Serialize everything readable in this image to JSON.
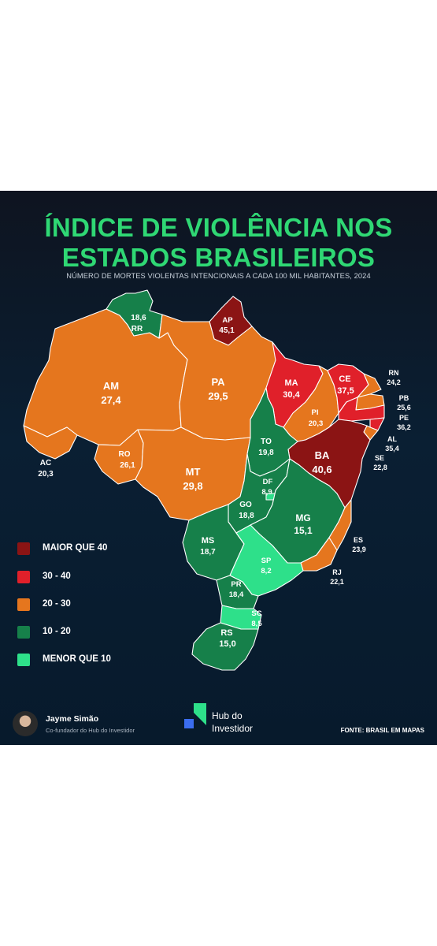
{
  "title_line1": "ÍNDICE DE VIOLÊNCIA NOS",
  "title_line2": "ESTADOS BRASILEIROS",
  "subtitle": "NÚMERO DE MORTES VIOLENTAS INTENCIONAIS A CADA 100 MIL HABITANTES, 2024",
  "colors": {
    "maior_que_40": "#8b1414",
    "30_40": "#e0202a",
    "20_30": "#e5761e",
    "10_20": "#16804a",
    "menor_que_10": "#2ee08a"
  },
  "legend": [
    {
      "label": "MAIOR QUE 40",
      "color": "#8b1414"
    },
    {
      "label": "30 - 40",
      "color": "#e0202a"
    },
    {
      "label": "20 - 30",
      "color": "#e5761e"
    },
    {
      "label": "10 - 20",
      "color": "#16804a"
    },
    {
      "label": "MENOR QUE 10",
      "color": "#2ee08a"
    }
  ],
  "states": {
    "RR": {
      "name": "RR",
      "value": "18,6"
    },
    "AP": {
      "name": "AP",
      "value": "45,1"
    },
    "AM": {
      "name": "AM",
      "value": "27,4"
    },
    "PA": {
      "name": "PA",
      "value": "29,5"
    },
    "MA": {
      "name": "MA",
      "value": "30,4"
    },
    "CE": {
      "name": "CE",
      "value": "37,5"
    },
    "RN": {
      "name": "RN",
      "value": "24,2"
    },
    "PB": {
      "name": "PB",
      "value": "25,6"
    },
    "PE": {
      "name": "PE",
      "value": "36,2"
    },
    "AL": {
      "name": "AL",
      "value": "35,4"
    },
    "SE": {
      "name": "SE",
      "value": "22,8"
    },
    "PI": {
      "name": "PI",
      "value": "20,3"
    },
    "BA": {
      "name": "BA",
      "value": "40,6"
    },
    "AC": {
      "name": "AC",
      "value": "20,3"
    },
    "RO": {
      "name": "RO",
      "value": "26,1"
    },
    "MT": {
      "name": "MT",
      "value": "29,8"
    },
    "TO": {
      "name": "TO",
      "value": "19,8"
    },
    "DF": {
      "name": "DF",
      "value": "8,9"
    },
    "GO": {
      "name": "GO",
      "value": "18,8"
    },
    "MG": {
      "name": "MG",
      "value": "15,1"
    },
    "ES": {
      "name": "ES",
      "value": "23,9"
    },
    "RJ": {
      "name": "RJ",
      "value": "22,1"
    },
    "MS": {
      "name": "MS",
      "value": "18,7"
    },
    "SP": {
      "name": "SP",
      "value": "8,2"
    },
    "PR": {
      "name": "PR",
      "value": "18,4"
    },
    "SC": {
      "name": "SC",
      "value": "8,5"
    },
    "RS": {
      "name": "RS",
      "value": "15,0"
    }
  },
  "footer": {
    "author_name": "Jayme Simão",
    "author_role": "Co-fundador do Hub do Investidor",
    "brand_line1": "Hub do",
    "brand_line2": "Investidor",
    "source": "FONTE: BRASIL EM MAPAS"
  }
}
